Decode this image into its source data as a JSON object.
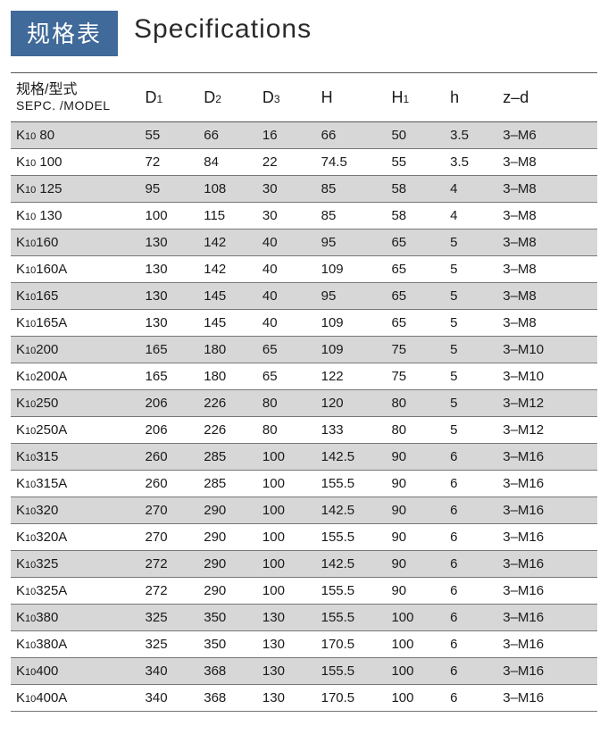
{
  "header": {
    "badge": "规格表",
    "title": "Specifications"
  },
  "table": {
    "head": {
      "model_zh": "规格/型式",
      "model_en": "SEPC. /MODEL",
      "D1_main": "D",
      "D1_sub": "1",
      "D2_main": "D",
      "D2_sub": "2",
      "D3_main": "D",
      "D3_sub": "3",
      "H": "H",
      "H1_main": "H",
      "H1_sub": "1",
      "h": "h",
      "zd": "z–d"
    },
    "rows": [
      {
        "m_pre": "K",
        "m_sub": "10",
        "m_post": " 80",
        "D1": "55",
        "D2": "66",
        "D3": "16",
        "H": "66",
        "H1": "50",
        "h": "3.5",
        "zd": "3–M6"
      },
      {
        "m_pre": "K",
        "m_sub": "10",
        "m_post": " 100",
        "D1": "72",
        "D2": "84",
        "D3": "22",
        "H": "74.5",
        "H1": "55",
        "h": "3.5",
        "zd": "3–M8"
      },
      {
        "m_pre": "K",
        "m_sub": "10",
        "m_post": " 125",
        "D1": "95",
        "D2": "108",
        "D3": "30",
        "H": "85",
        "H1": "58",
        "h": "4",
        "zd": "3–M8"
      },
      {
        "m_pre": "K",
        "m_sub": "10",
        "m_post": " 130",
        "D1": "100",
        "D2": "115",
        "D3": "30",
        "H": "85",
        "H1": "58",
        "h": "4",
        "zd": "3–M8"
      },
      {
        "m_pre": "K",
        "m_sub": "10",
        "m_post": "160",
        "D1": "130",
        "D2": "142",
        "D3": "40",
        "H": "95",
        "H1": "65",
        "h": "5",
        "zd": "3–M8"
      },
      {
        "m_pre": "K",
        "m_sub": "10",
        "m_post": "160A",
        "D1": "130",
        "D2": "142",
        "D3": "40",
        "H": "109",
        "H1": "65",
        "h": "5",
        "zd": "3–M8"
      },
      {
        "m_pre": "K",
        "m_sub": "10",
        "m_post": "165",
        "D1": "130",
        "D2": "145",
        "D3": "40",
        "H": "95",
        "H1": "65",
        "h": "5",
        "zd": "3–M8"
      },
      {
        "m_pre": "K",
        "m_sub": "10",
        "m_post": "165A",
        "D1": "130",
        "D2": "145",
        "D3": "40",
        "H": "109",
        "H1": "65",
        "h": "5",
        "zd": "3–M8"
      },
      {
        "m_pre": "K",
        "m_sub": "10",
        "m_post": "200",
        "D1": "165",
        "D2": "180",
        "D3": "65",
        "H": "109",
        "H1": "75",
        "h": "5",
        "zd": "3–M10"
      },
      {
        "m_pre": "K",
        "m_sub": "10",
        "m_post": "200A",
        "D1": "165",
        "D2": "180",
        "D3": "65",
        "H": "122",
        "H1": "75",
        "h": "5",
        "zd": "3–M10"
      },
      {
        "m_pre": "K",
        "m_sub": "10",
        "m_post": "250",
        "D1": "206",
        "D2": "226",
        "D3": "80",
        "H": "120",
        "H1": "80",
        "h": "5",
        "zd": "3–M12"
      },
      {
        "m_pre": "K",
        "m_sub": "10",
        "m_post": "250A",
        "D1": "206",
        "D2": "226",
        "D3": "80",
        "H": "133",
        "H1": "80",
        "h": "5",
        "zd": "3–M12"
      },
      {
        "m_pre": "K",
        "m_sub": "10",
        "m_post": "315",
        "D1": "260",
        "D2": "285",
        "D3": "100",
        "H": "142.5",
        "H1": "90",
        "h": "6",
        "zd": "3–M16"
      },
      {
        "m_pre": "K",
        "m_sub": "10",
        "m_post": "315A",
        "D1": "260",
        "D2": "285",
        "D3": "100",
        "H": "155.5",
        "H1": "90",
        "h": "6",
        "zd": "3–M16"
      },
      {
        "m_pre": "K",
        "m_sub": "10",
        "m_post": "320",
        "D1": "270",
        "D2": "290",
        "D3": "100",
        "H": "142.5",
        "H1": "90",
        "h": "6",
        "zd": "3–M16"
      },
      {
        "m_pre": "K",
        "m_sub": "10",
        "m_post": "320A",
        "D1": "270",
        "D2": "290",
        "D3": "100",
        "H": "155.5",
        "H1": "90",
        "h": "6",
        "zd": "3–M16"
      },
      {
        "m_pre": "K",
        "m_sub": "10",
        "m_post": "325",
        "D1": "272",
        "D2": "290",
        "D3": "100",
        "H": "142.5",
        "H1": "90",
        "h": "6",
        "zd": "3–M16"
      },
      {
        "m_pre": "K",
        "m_sub": "10",
        "m_post": "325A",
        "D1": "272",
        "D2": "290",
        "D3": "100",
        "H": "155.5",
        "H1": "90",
        "h": "6",
        "zd": "3–M16"
      },
      {
        "m_pre": "K",
        "m_sub": "10",
        "m_post": "380",
        "D1": "325",
        "D2": "350",
        "D3": "130",
        "H": "155.5",
        "H1": "100",
        "h": "6",
        "zd": "3–M16"
      },
      {
        "m_pre": "K",
        "m_sub": "10",
        "m_post": "380A",
        "D1": "325",
        "D2": "350",
        "D3": "130",
        "H": "170.5",
        "H1": "100",
        "h": "6",
        "zd": "3–M16"
      },
      {
        "m_pre": "K",
        "m_sub": "10",
        "m_post": "400",
        "D1": "340",
        "D2": "368",
        "D3": "130",
        "H": "155.5",
        "H1": "100",
        "h": "6",
        "zd": "3–M16"
      },
      {
        "m_pre": "K",
        "m_sub": "10",
        "m_post": "400A",
        "D1": "340",
        "D2": "368",
        "D3": "130",
        "H": "170.5",
        "H1": "100",
        "h": "6",
        "zd": "3–M16"
      }
    ]
  },
  "styling": {
    "badge_bg": "#3f6a99",
    "badge_fg": "#ffffff",
    "row_alt_bg": "#d7d7d7",
    "border_color": "#777777",
    "font": "Arial"
  }
}
